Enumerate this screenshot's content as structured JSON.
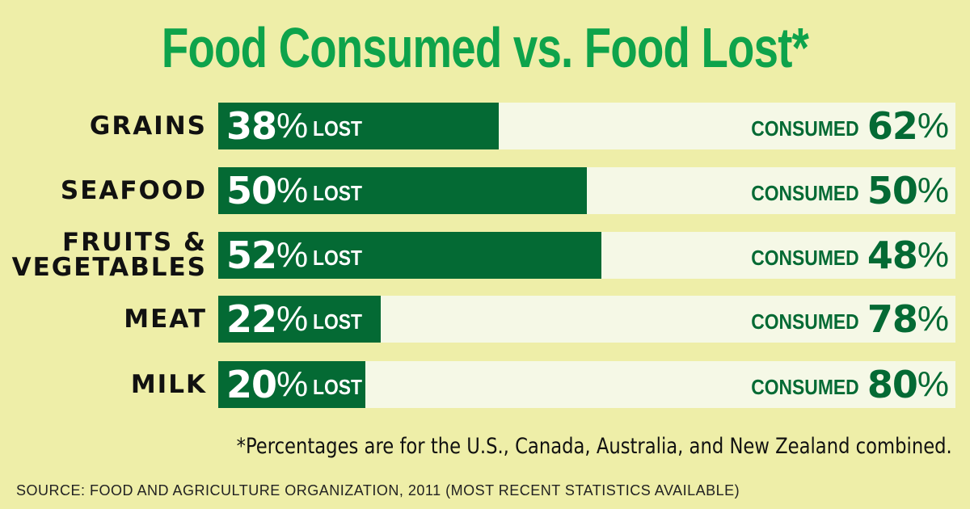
{
  "title": "Food Consumed vs. Food Lost*",
  "lost_word": "LOST",
  "consumed_word": "CONSUMED",
  "percent_sign": "%",
  "footnote": "*Percentages are for the U.S., Canada, Australia, and New Zealand combined.",
  "source": "SOURCE: FOOD AND AGRICULTURE ORGANIZATION, 2011 (MOST RECENT STATISTICS AVAILABLE)",
  "colors": {
    "background": "#eeeea8",
    "title": "#0ea34b",
    "lost_bar": "#046a34",
    "consumed_track": "#f5f8e6"
  },
  "chart_data": {
    "type": "bar",
    "orientation": "horizontal",
    "stacked": true,
    "title": "Food Consumed vs. Food Lost*",
    "categories": [
      "GRAINS",
      "SEAFOOD",
      "FRUITS &\nVEGETABLES",
      "MEAT",
      "MILK"
    ],
    "series": [
      {
        "name": "LOST",
        "values": [
          38,
          50,
          52,
          22,
          20
        ]
      },
      {
        "name": "CONSUMED",
        "values": [
          62,
          50,
          48,
          78,
          80
        ]
      }
    ],
    "xlim": [
      0,
      100
    ],
    "grid": false,
    "legend": "none"
  }
}
